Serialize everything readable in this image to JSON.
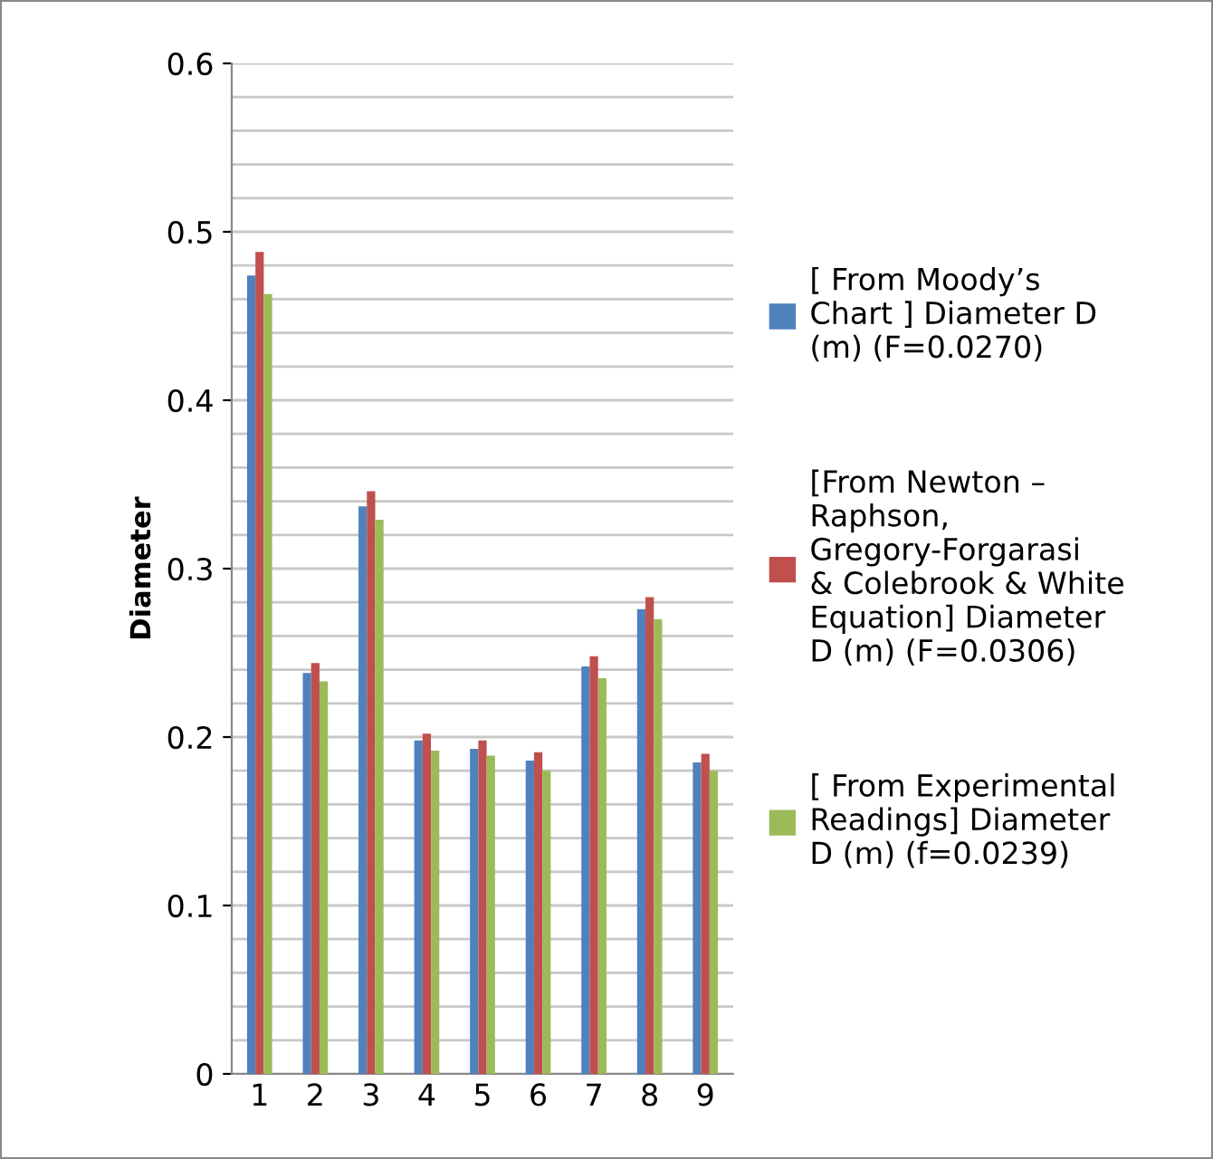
{
  "chart_data": {
    "type": "bar",
    "ylabel": "Diameter",
    "categories": [
      "1",
      "2",
      "3",
      "4",
      "5",
      "6",
      "7",
      "8",
      "9"
    ],
    "series": [
      {
        "name": "[ From Moody’s Chart ] Diameter D (m) (F=0.0270)",
        "color": "#4f81bd",
        "values": [
          0.474,
          0.238,
          0.337,
          0.198,
          0.193,
          0.186,
          0.242,
          0.276,
          0.185
        ]
      },
      {
        "name": "[From Newton – Raphson, Gregory-Forgarasi  & Colebrook & White Equation] Diameter D (m) (F=0.0306)",
        "color": "#c0504d",
        "values": [
          0.488,
          0.244,
          0.346,
          0.202,
          0.198,
          0.191,
          0.248,
          0.283,
          0.19
        ]
      },
      {
        "name": "[ From Experimental Readings] Diameter D (m) (f=0.0239)",
        "color": "#9bbb59",
        "values": [
          0.463,
          0.233,
          0.329,
          0.192,
          0.189,
          0.18,
          0.235,
          0.27,
          0.18
        ]
      }
    ],
    "ylim": [
      0,
      0.6
    ],
    "yticks": [
      0,
      {
        "value": 0.02,
        "label": null
      },
      {
        "value": 0.04,
        "label": null
      },
      {
        "value": 0.06,
        "label": null
      },
      {
        "value": 0.08,
        "label": null
      },
      0.1,
      {
        "value": 0.12,
        "label": null
      },
      {
        "value": 0.14,
        "label": null
      },
      {
        "value": 0.16,
        "label": null
      },
      {
        "value": 0.18,
        "label": null
      },
      0.2,
      {
        "value": 0.22,
        "label": null
      },
      {
        "value": 0.24,
        "label": null
      },
      {
        "value": 0.26,
        "label": null
      },
      {
        "value": 0.28,
        "label": null
      },
      0.3,
      {
        "value": 0.32,
        "label": null
      },
      {
        "value": 0.34,
        "label": null
      },
      {
        "value": 0.36,
        "label": null
      },
      {
        "value": 0.38,
        "label": null
      },
      0.4,
      {
        "value": 0.42,
        "label": null
      },
      {
        "value": 0.44,
        "label": null
      },
      {
        "value": 0.46,
        "label": null
      },
      {
        "value": 0.48,
        "label": null
      },
      0.5,
      {
        "value": 0.52,
        "label": null
      },
      {
        "value": 0.54,
        "label": null
      },
      {
        "value": 0.56,
        "label": null
      },
      {
        "value": 0.58,
        "label": null
      },
      0.6
    ],
    "grid": "y",
    "legend": "right"
  }
}
